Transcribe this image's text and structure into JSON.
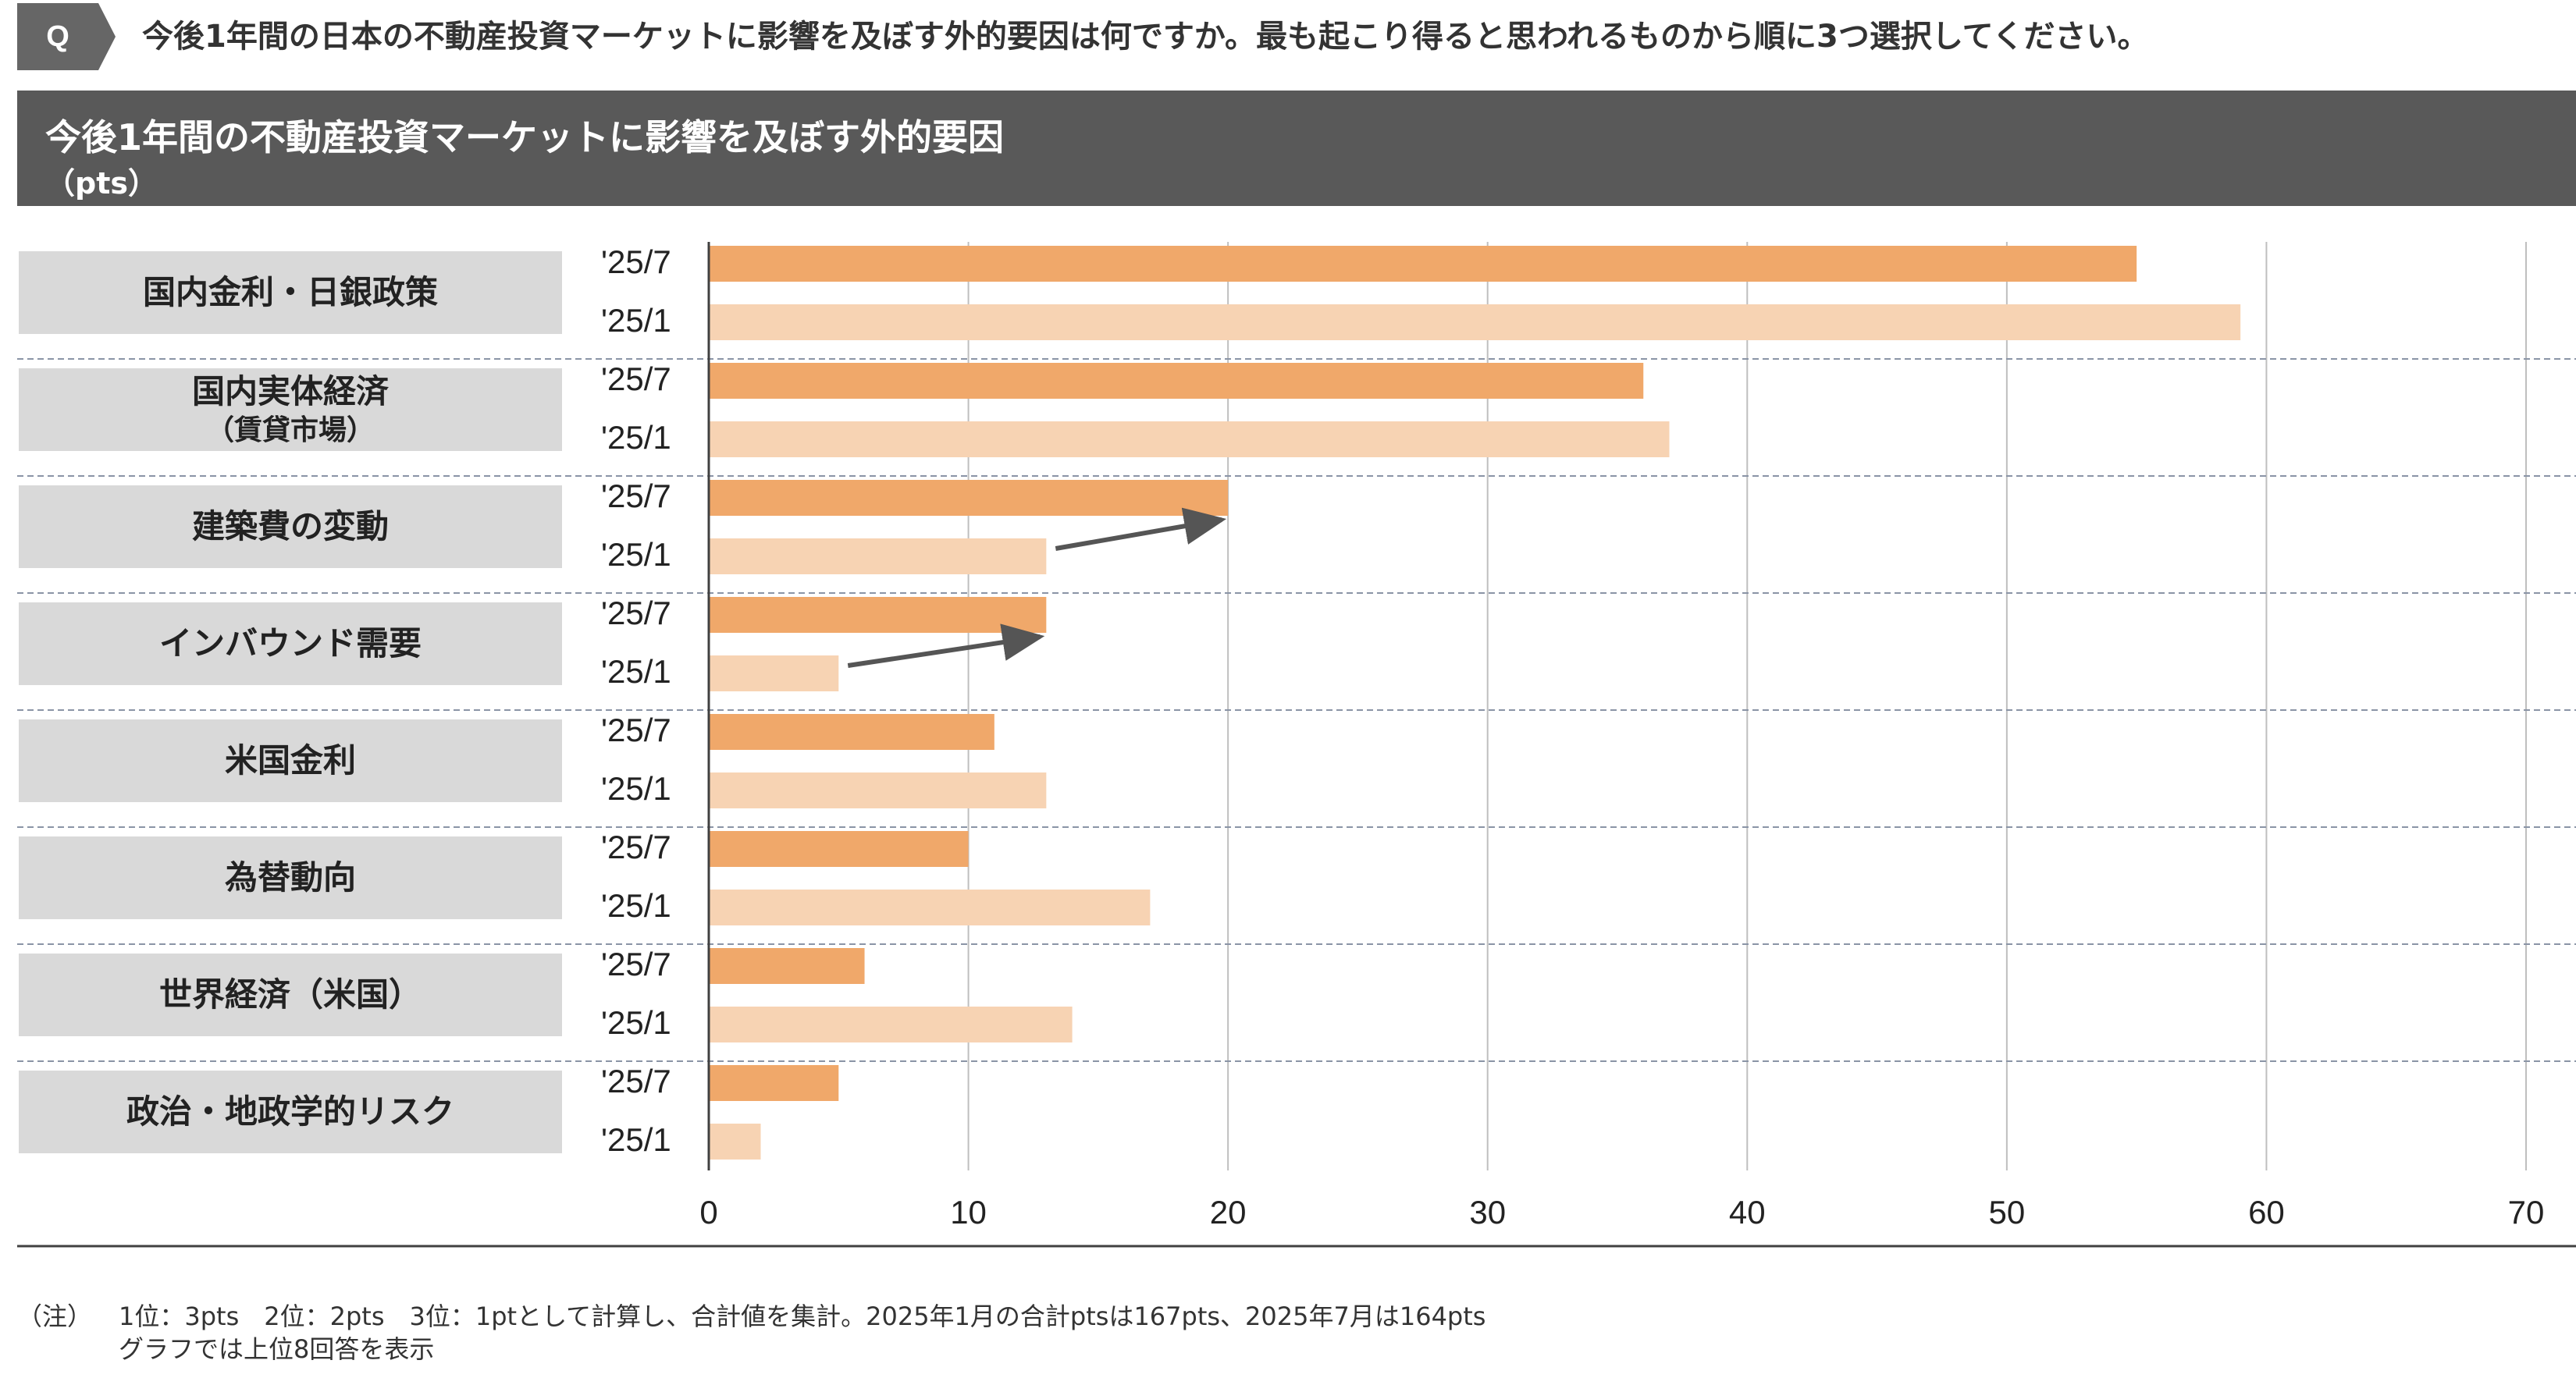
{
  "header": {
    "badge": "Q",
    "question": "今後1年間の日本の不動産投資マーケットに影響を及ぼす外的要因は何ですか。最も起こり得ると思われるものから順に3つ選択してください。"
  },
  "banner": {
    "title": "今後1年間の不動産投資マーケットに影響を及ぼす外的要因",
    "unit": "（pts）"
  },
  "chart_data": {
    "type": "bar",
    "orientation": "horizontal",
    "categories": [
      {
        "label": "国内金利・日銀政策",
        "sub": ""
      },
      {
        "label": "国内実体経済",
        "sub": "（賃貸市場）"
      },
      {
        "label": "建築費の変動",
        "sub": ""
      },
      {
        "label": "インバウンド需要",
        "sub": ""
      },
      {
        "label": "米国金利",
        "sub": ""
      },
      {
        "label": "為替動向",
        "sub": ""
      },
      {
        "label": "世界経済（米国）",
        "sub": ""
      },
      {
        "label": "政治・地政学的リスク",
        "sub": ""
      }
    ],
    "series": [
      {
        "name": "'25/7",
        "color": "#f0a86a",
        "values": [
          55,
          36,
          20,
          13,
          11,
          10,
          6,
          5
        ]
      },
      {
        "name": "'25/1",
        "color": "#f7d3b3",
        "values": [
          59,
          37,
          13,
          5,
          13,
          17,
          14,
          2
        ]
      }
    ],
    "xlim": [
      0,
      70
    ],
    "xticks": [
      "0",
      "10",
      "20",
      "30",
      "40",
      "50",
      "60",
      "70"
    ],
    "grid": true,
    "arrows": [
      {
        "category_index": 2,
        "from_value": 13,
        "to_value": 20
      },
      {
        "category_index": 3,
        "from_value": 5,
        "to_value": 13
      }
    ]
  },
  "notes": {
    "mark": "（注）",
    "line1": "1位：3pts　2位：2pts　3位：1ptとして計算し、合計値を集計。2025年1月の合計ptsは167pts、2025年7月は164pts",
    "line2": "グラフでは上位8回答を表示"
  }
}
